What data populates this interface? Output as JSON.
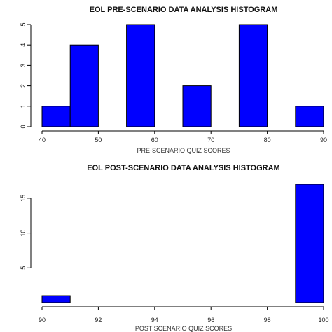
{
  "chart_data": [
    {
      "type": "bar",
      "title": "EOL PRE-SCENARIO DATA ANALYSIS HISTOGRAM",
      "xlabel": "PRE-SCENARIO QUIZ SCORES",
      "ylabel": "",
      "xlim": [
        40,
        90
      ],
      "ylim": [
        0,
        5
      ],
      "x_ticks": [
        "40",
        "50",
        "60",
        "70",
        "80",
        "90"
      ],
      "y_ticks": [
        "0",
        "1",
        "2",
        "3",
        "4",
        "5"
      ],
      "bins": [
        {
          "start": 40,
          "end": 45,
          "value": 1
        },
        {
          "start": 45,
          "end": 50,
          "value": 4
        },
        {
          "start": 55,
          "end": 60,
          "value": 5
        },
        {
          "start": 65,
          "end": 70,
          "value": 2
        },
        {
          "start": 75,
          "end": 80,
          "value": 5
        },
        {
          "start": 85,
          "end": 90,
          "value": 1
        }
      ],
      "bar_color": "#0000ff"
    },
    {
      "type": "bar",
      "title": "EOL POST-SCENARIO DATA ANALYSIS HISTOGRAM",
      "xlabel": "POST SCENARIO QUIZ SCORES",
      "ylabel": "",
      "xlim": [
        90,
        100
      ],
      "ylim": [
        0,
        17
      ],
      "x_ticks": [
        "90",
        "92",
        "94",
        "96",
        "98",
        "100"
      ],
      "y_ticks": [
        "5",
        "10",
        "15"
      ],
      "bins": [
        {
          "start": 90,
          "end": 91,
          "value": 1
        },
        {
          "start": 99,
          "end": 100,
          "value": 17
        }
      ],
      "bar_color": "#0000ff"
    }
  ]
}
